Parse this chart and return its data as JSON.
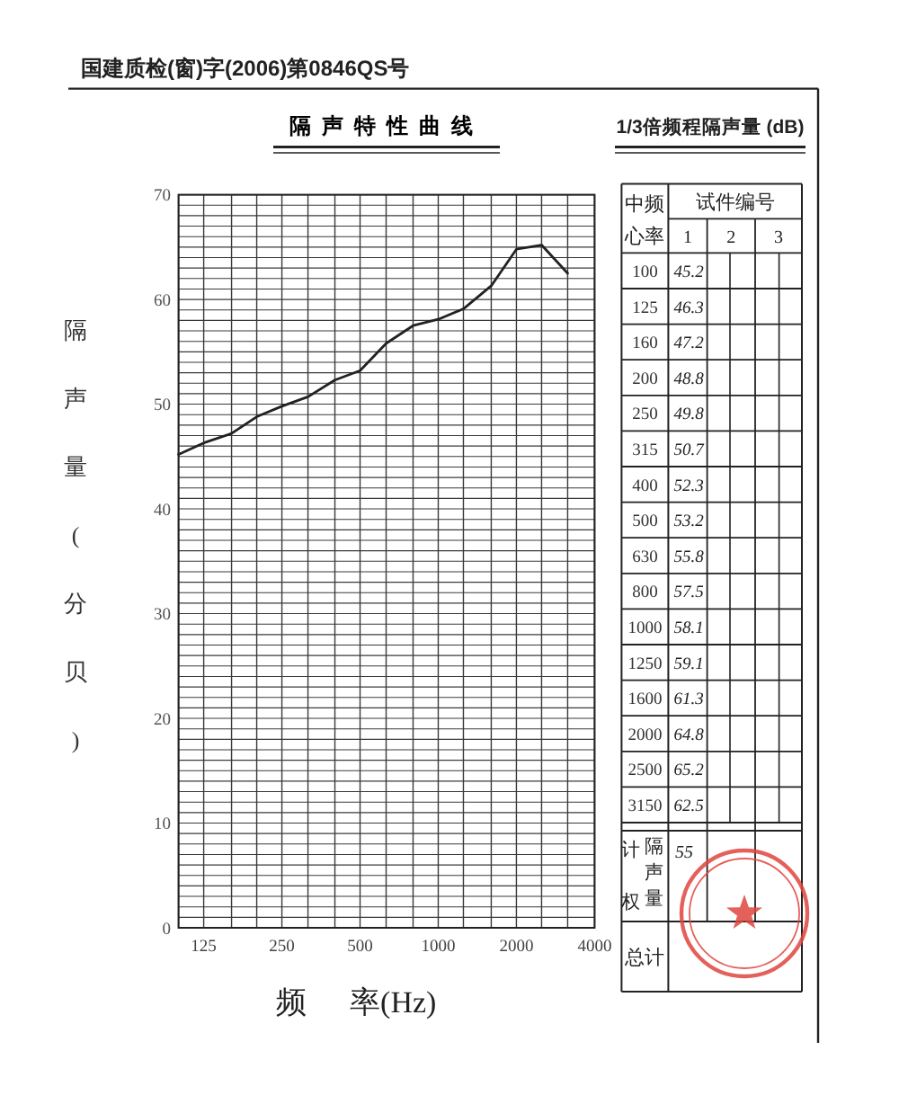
{
  "chart_data": [
    {
      "type": "line",
      "title": "隔声特性曲线",
      "xlabel": "频 率(Hz)",
      "ylabel": "隔声量(分贝)",
      "x": [
        100,
        125,
        160,
        200,
        250,
        315,
        400,
        500,
        630,
        800,
        1000,
        1250,
        1600,
        2000,
        2500,
        3150
      ],
      "values": [
        45.2,
        46.3,
        47.2,
        48.8,
        49.8,
        50.7,
        52.3,
        53.2,
        55.8,
        57.5,
        58.1,
        59.1,
        61.3,
        64.8,
        65.2,
        62.5
      ],
      "color": "#222222",
      "log": "x",
      "xlim": [
        100,
        4000
      ],
      "xticks": [
        {
          "value": 100,
          "label": null
        },
        125,
        {
          "value": 160,
          "label": null
        },
        {
          "value": 200,
          "label": null
        },
        250,
        {
          "value": 315,
          "label": null
        },
        {
          "value": 400,
          "label": null
        },
        500,
        {
          "value": 630,
          "label": null
        },
        {
          "value": 800,
          "label": null
        },
        1000,
        {
          "value": 1250,
          "label": null
        },
        {
          "value": 1600,
          "label": null
        },
        2000,
        {
          "value": 2500,
          "label": null
        },
        {
          "value": 3150,
          "label": null
        },
        4000
      ],
      "ylim": [
        0,
        70
      ],
      "yticks": [
        0,
        {
          "value": 1,
          "label": null
        },
        {
          "value": 2,
          "label": null
        },
        {
          "value": 3,
          "label": null
        },
        {
          "value": 4,
          "label": null
        },
        {
          "value": 5,
          "label": null
        },
        {
          "value": 6,
          "label": null
        },
        {
          "value": 7,
          "label": null
        },
        {
          "value": 8,
          "label": null
        },
        {
          "value": 9,
          "label": null
        },
        10,
        {
          "value": 11,
          "label": null
        },
        {
          "value": 12,
          "label": null
        },
        {
          "value": 13,
          "label": null
        },
        {
          "value": 14,
          "label": null
        },
        {
          "value": 15,
          "label": null
        },
        {
          "value": 16,
          "label": null
        },
        {
          "value": 17,
          "label": null
        },
        {
          "value": 18,
          "label": null
        },
        {
          "value": 19,
          "label": null
        },
        20,
        {
          "value": 21,
          "label": null
        },
        {
          "value": 22,
          "label": null
        },
        {
          "value": 23,
          "label": null
        },
        {
          "value": 24,
          "label": null
        },
        {
          "value": 25,
          "label": null
        },
        {
          "value": 26,
          "label": null
        },
        {
          "value": 27,
          "label": null
        },
        {
          "value": 28,
          "label": null
        },
        {
          "value": 29,
          "label": null
        },
        30,
        {
          "value": 31,
          "label": null
        },
        {
          "value": 32,
          "label": null
        },
        {
          "value": 33,
          "label": null
        },
        {
          "value": 34,
          "label": null
        },
        {
          "value": 35,
          "label": null
        },
        {
          "value": 36,
          "label": null
        },
        {
          "value": 37,
          "label": null
        },
        {
          "value": 38,
          "label": null
        },
        {
          "value": 39,
          "label": null
        },
        40,
        {
          "value": 41,
          "label": null
        },
        {
          "value": 42,
          "label": null
        },
        {
          "value": 43,
          "label": null
        },
        {
          "value": 44,
          "label": null
        },
        {
          "value": 45,
          "label": null
        },
        {
          "value": 46,
          "label": null
        },
        {
          "value": 47,
          "label": null
        },
        {
          "value": 48,
          "label": null
        },
        {
          "value": 49,
          "label": null
        },
        50,
        {
          "value": 51,
          "label": null
        },
        {
          "value": 52,
          "label": null
        },
        {
          "value": 53,
          "label": null
        },
        {
          "value": 54,
          "label": null
        },
        {
          "value": 55,
          "label": null
        },
        {
          "value": 56,
          "label": null
        },
        {
          "value": 57,
          "label": null
        },
        {
          "value": 58,
          "label": null
        },
        {
          "value": 59,
          "label": null
        },
        60,
        {
          "value": 61,
          "label": null
        },
        {
          "value": 62,
          "label": null
        },
        {
          "value": 63,
          "label": null
        },
        {
          "value": 64,
          "label": null
        },
        {
          "value": 65,
          "label": null
        },
        {
          "value": 66,
          "label": null
        },
        {
          "value": 67,
          "label": null
        },
        {
          "value": 68,
          "label": null
        },
        {
          "value": 69,
          "label": null
        },
        70
      ],
      "grid": true,
      "annotations": [
        "国建质检(窗)字(2006)第0846QS号"
      ]
    },
    {
      "type": "other",
      "title": "1/3倍频程隔声量 (dB)",
      "categories": [
        "100",
        "125",
        "160",
        "200",
        "250",
        "315",
        "400",
        "500",
        "630",
        "800",
        "1000",
        "1250",
        "1600",
        "2000",
        "2500",
        "3150"
      ],
      "values": [
        45.2,
        46.3,
        47.2,
        48.8,
        49.8,
        50.7,
        52.3,
        53.2,
        55.8,
        57.5,
        58.1,
        59.1,
        61.3,
        64.8,
        65.2,
        62.5
      ],
      "data_labels": true,
      "annotations": [
        "中频",
        "心率",
        "试件编号",
        "1",
        "2",
        "3",
        "计权",
        "隔声量",
        "55",
        "总计"
      ]
    }
  ]
}
